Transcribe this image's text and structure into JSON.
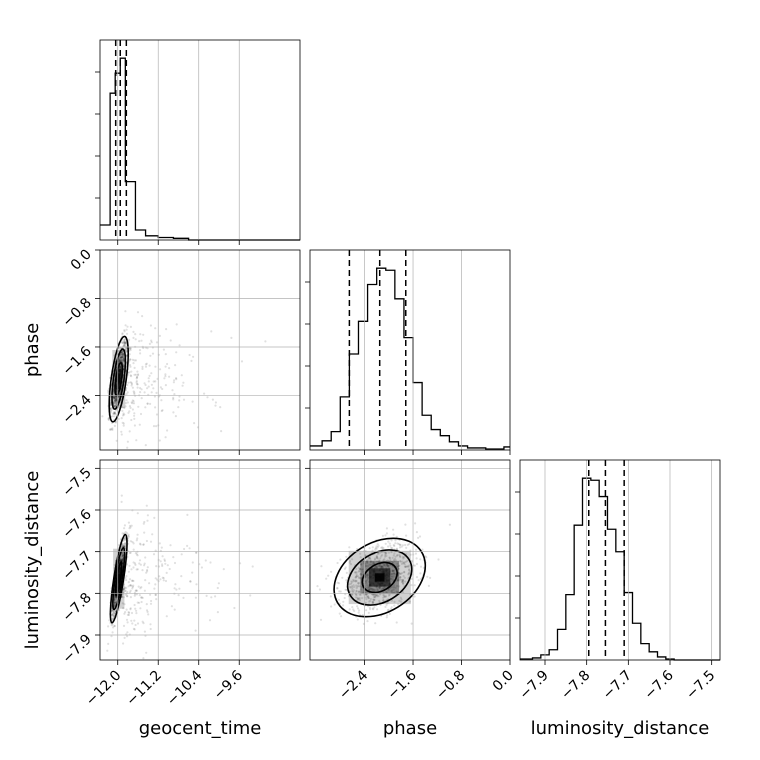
{
  "chart_data": {
    "type": "corner",
    "parameters": [
      "geocent_time",
      "phase",
      "luminosity_distance"
    ],
    "axis_labels": {
      "x": [
        "geocent_time",
        "phase",
        "luminosity_distance"
      ],
      "y": [
        "phase",
        "luminosity_distance"
      ]
    },
    "ranges": {
      "geocent_time": [
        -12.35,
        -8.4
      ],
      "phase": [
        -3.3,
        0.0
      ],
      "luminosity_distance": [
        -7.96,
        -7.48
      ]
    },
    "ticks": {
      "geocent_time": [
        {
          "v": -12.0,
          "label": "−12.0"
        },
        {
          "v": -11.2,
          "label": "−11.2"
        },
        {
          "v": -10.4,
          "label": "−10.4"
        },
        {
          "v": -9.6,
          "label": "−9.6"
        }
      ],
      "phase": [
        {
          "v": -2.4,
          "label": "−2.4"
        },
        {
          "v": -1.6,
          "label": "−1.6"
        },
        {
          "v": -0.8,
          "label": "−0.8"
        },
        {
          "v": 0.0,
          "label": "0.0"
        }
      ],
      "luminosity_distance": [
        {
          "v": -7.9,
          "label": "−7.9"
        },
        {
          "v": -7.8,
          "label": "−7.8"
        },
        {
          "v": -7.7,
          "label": "−7.7"
        },
        {
          "v": -7.6,
          "label": "−7.6"
        },
        {
          "v": -7.5,
          "label": "−7.5"
        }
      ]
    },
    "grid": true,
    "histograms": {
      "geocent_time": {
        "edges": [
          -12.35,
          -12.15,
          -12.05,
          -11.95,
          -11.85,
          -11.65,
          -11.45,
          -11.2,
          -10.9,
          -10.6,
          -8.4
        ],
        "counts": [
          9,
          88,
          100,
          109,
          35,
          6,
          2.5,
          1.5,
          1,
          0
        ],
        "quantiles": [
          -12.04,
          -11.95,
          -11.83
        ]
      },
      "phase": {
        "edges": [
          -3.3,
          -3.1,
          -2.95,
          -2.8,
          -2.65,
          -2.5,
          -2.35,
          -2.2,
          -2.05,
          -1.9,
          -1.75,
          -1.6,
          -1.45,
          -1.3,
          -1.15,
          -1.0,
          -0.85,
          -0.7,
          -0.55,
          -0.4,
          -0.25,
          -0.1,
          0.0
        ],
        "counts": [
          2,
          4.5,
          9,
          26,
          47,
          63,
          81,
          89,
          88,
          74,
          55,
          33,
          17,
          10,
          7,
          4,
          2,
          1,
          1,
          0.5,
          0.5,
          1.5
        ],
        "quantiles": [
          -2.65,
          -2.15,
          -1.72
        ]
      },
      "luminosity_distance": {
        "edges": [
          -7.96,
          -7.93,
          -7.91,
          -7.89,
          -7.87,
          -7.85,
          -7.83,
          -7.81,
          -7.79,
          -7.77,
          -7.75,
          -7.73,
          -7.71,
          -7.69,
          -7.67,
          -7.65,
          -7.63,
          -7.61,
          -7.59,
          -7.48
        ],
        "counts": [
          0.5,
          1,
          2.5,
          5,
          15,
          32,
          66,
          89,
          88,
          80,
          64,
          53,
          33,
          18,
          8,
          4,
          1.5,
          0.5,
          0
        ],
        "quantiles": [
          -7.795,
          -7.755,
          -7.71
        ]
      }
    },
    "pairs": [
      {
        "x": "geocent_time",
        "y": "phase",
        "center": [
          -11.98,
          -2.13
        ],
        "sigma": [
          0.08,
          0.3
        ],
        "rho": 0.6,
        "tail": true
      },
      {
        "x": "geocent_time",
        "y": "luminosity_distance",
        "center": [
          -11.98,
          -7.765
        ],
        "sigma": [
          0.07,
          0.045
        ],
        "rho": 0.8,
        "tail": true
      },
      {
        "x": "phase",
        "y": "luminosity_distance",
        "center": [
          -2.15,
          -7.762
        ],
        "sigma": [
          0.32,
          0.04
        ],
        "rho": 0.3,
        "tail": false
      }
    ]
  }
}
